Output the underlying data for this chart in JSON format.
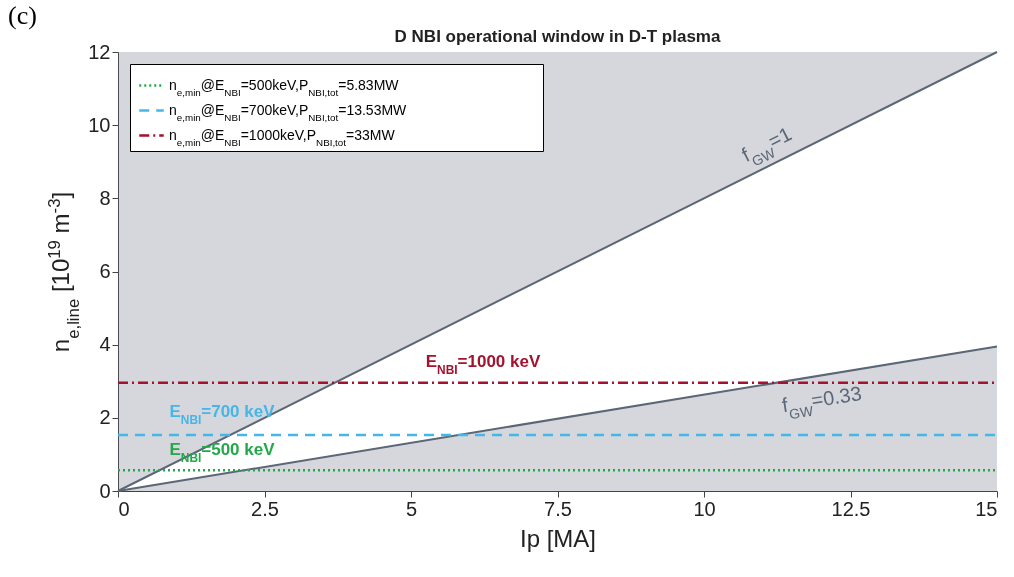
{
  "chart_data": {
    "type": "line",
    "title": "D NBI operational window in D-T plasma",
    "xlabel": "Ip [MA]",
    "ylabel": "n$_{e,line}$ [10$^{19}$ m$^{-3}$]",
    "x": [
      0,
      15
    ],
    "xlim": [
      0,
      15
    ],
    "xticks": [
      0,
      2.5,
      5,
      7.5,
      10,
      12.5,
      15
    ],
    "ylim": [
      0,
      12
    ],
    "yticks": [
      0,
      2,
      4,
      6,
      8,
      10,
      12
    ],
    "series": [
      {
        "color": "#5b6676",
        "values": [
          0,
          12
        ],
        "lower": [
          0,
          12
        ],
        "upper": [
          12,
          12
        ]
      },
      {
        "type": "area",
        "color": "#5b6676",
        "values": [
          0,
          3.95
        ]
      },
      {
        "name": "n$_{e,min}$@E$_{NBI}$=500keV,P$_{NBI,tot}$=5.83MW",
        "color": "#22a84a",
        "line_style": "dotted",
        "values": [
          0.57,
          0.57
        ]
      },
      {
        "name": "n$_{e,min}$@E$_{NBI}$=700keV,P$_{NBI,tot}$=13.53MW",
        "color": "#45b6e8",
        "line_style": "dashed",
        "values": [
          1.53,
          1.53
        ]
      },
      {
        "name": "n$_{e,min}$@E$_{NBI}$=1000keV,P$_{NBI,tot}$=33MW",
        "color": "#a3122f",
        "line_style": "dashdot",
        "values": [
          2.96,
          2.96
        ]
      }
    ],
    "legend": "top left",
    "annotations": [
      "(c)",
      "f$_{GW}$=1",
      "f$_{GW}$=0.33",
      "E$_{NBI}$=1000 keV",
      "E$_{NBI}$=700 keV",
      "E$_{NBI}$=500 keV"
    ]
  }
}
